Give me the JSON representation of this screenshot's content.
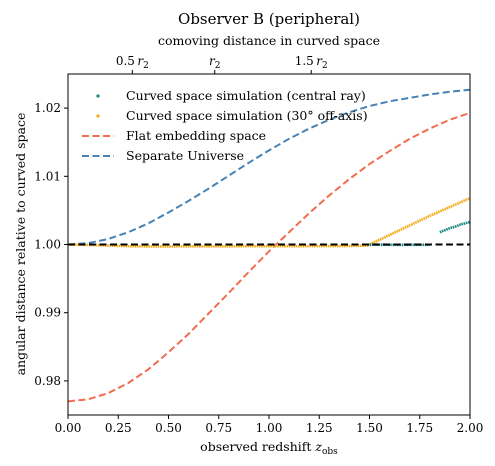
{
  "chart_data": {
    "type": "line",
    "title": "Observer B (peripheral)",
    "xlabel": "observed redshift",
    "xlabel_symbol": "z",
    "xlabel_subscript": "obs",
    "ylabel": "angular distance relative to curved space",
    "top_axis_label": "comoving distance in curved space",
    "xlim": [
      0.0,
      2.0
    ],
    "ylim": [
      0.975,
      1.025
    ],
    "x_ticks": [
      0.0,
      0.25,
      0.5,
      0.75,
      1.0,
      1.25,
      1.5,
      1.75,
      2.0
    ],
    "x_tick_labels": [
      "0.00",
      "0.25",
      "0.50",
      "0.75",
      "1.00",
      "1.25",
      "1.50",
      "1.75",
      "2.00"
    ],
    "y_ticks": [
      0.98,
      0.99,
      1.0,
      1.01,
      1.02
    ],
    "y_tick_labels": [
      "0.98",
      "0.99",
      "1.00",
      "1.01",
      "1.02"
    ],
    "top_ticks": [
      {
        "x": 0.32,
        "coef": "0.5",
        "sym": "r",
        "sub": "2"
      },
      {
        "x": 0.73,
        "coef": "",
        "sym": "r",
        "sub": "2"
      },
      {
        "x": 1.21,
        "coef": "1.5",
        "sym": "r",
        "sub": "2"
      }
    ],
    "reference_line": {
      "y": 1.0,
      "color": "#000000"
    },
    "legend_position": "upper-left",
    "series": [
      {
        "name": "Curved space simulation (central ray)",
        "style": "dots",
        "color": "#148585",
        "segments": [
          {
            "x": [
              1.5,
              1.55,
              1.6,
              1.65,
              1.7,
              1.75,
              1.8
            ],
            "y": [
              0.99997,
              0.99997,
              0.99996,
              0.99996,
              0.99996,
              0.99996,
              0.99996
            ]
          },
          {
            "x": [
              1.85,
              1.875,
              1.9,
              1.925,
              1.95,
              1.975,
              2.0
            ],
            "y": [
              1.0018,
              1.0021,
              1.0024,
              1.0026,
              1.0029,
              1.0031,
              1.0033
            ]
          }
        ]
      },
      {
        "name": "Curved space simulation (30° off-axis)",
        "style": "dots",
        "color": "#f5a912",
        "segments": [
          {
            "x": [
              0.0,
              0.1,
              0.2,
              0.3,
              0.4,
              0.5,
              0.6,
              0.7,
              0.8,
              0.9,
              1.0,
              1.1,
              1.2,
              1.3,
              1.4,
              1.5
            ],
            "y": [
              1.0,
              0.99995,
              0.99985,
              0.99975,
              0.99972,
              0.99972,
              0.99973,
              0.99973,
              0.99974,
              0.99975,
              0.99975,
              0.99976,
              0.99976,
              0.99977,
              0.99978,
              0.99985
            ]
          },
          {
            "x": [
              1.5,
              1.6,
              1.7,
              1.8,
              1.9,
              2.0
            ],
            "y": [
              1.0,
              1.0014,
              1.0028,
              1.0042,
              1.0055,
              1.0068
            ]
          }
        ]
      },
      {
        "name": "Flat embedding space",
        "style": "dashed",
        "color": "#f26c4f",
        "x": [
          0.0,
          0.1,
          0.2,
          0.3,
          0.4,
          0.5,
          0.6,
          0.7,
          0.8,
          0.9,
          1.0,
          1.1,
          1.2,
          1.3,
          1.4,
          1.5,
          1.6,
          1.7,
          1.8,
          1.9,
          2.0
        ],
        "y": [
          0.977,
          0.9773,
          0.9782,
          0.9797,
          0.9817,
          0.9842,
          0.9869,
          0.9899,
          0.9929,
          0.996,
          0.999,
          1.0018,
          1.0046,
          1.0072,
          1.0096,
          1.0118,
          1.0137,
          1.0155,
          1.017,
          1.0183,
          1.0193
        ]
      },
      {
        "name": "Separate Universe",
        "style": "dashed",
        "color": "#4682b4",
        "x": [
          0.0,
          0.1,
          0.2,
          0.3,
          0.4,
          0.5,
          0.6,
          0.7,
          0.8,
          0.9,
          1.0,
          1.1,
          1.2,
          1.3,
          1.4,
          1.5,
          1.6,
          1.7,
          1.8,
          1.9,
          2.0
        ],
        "y": [
          1.0,
          1.0002,
          1.0008,
          1.0018,
          1.0031,
          1.0047,
          1.0064,
          1.0082,
          1.0101,
          1.012,
          1.0138,
          1.0155,
          1.017,
          1.0183,
          1.0194,
          1.0203,
          1.021,
          1.0215,
          1.022,
          1.0224,
          1.0227
        ]
      }
    ]
  }
}
